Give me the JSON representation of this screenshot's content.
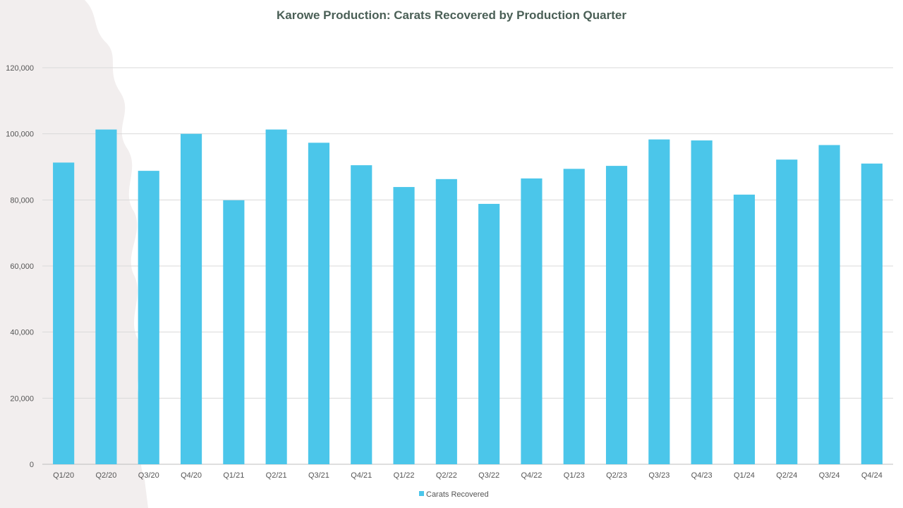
{
  "chart_data": {
    "type": "bar",
    "title": "Karowe Production: Carats Recovered by Production Quarter",
    "xlabel": "",
    "ylabel": "",
    "ylim": [
      0,
      120000
    ],
    "yticks": [
      0,
      20000,
      40000,
      60000,
      80000,
      100000,
      120000
    ],
    "ytick_labels": [
      "0",
      "20,000",
      "40,000",
      "60,000",
      "80,000",
      "100,000",
      "120,000"
    ],
    "grid": true,
    "legend_position": "bottom",
    "categories": [
      "Q1/20",
      "Q2/20",
      "Q3/20",
      "Q4/20",
      "Q1/21",
      "Q2/21",
      "Q3/21",
      "Q4/21",
      "Q1/22",
      "Q2/22",
      "Q3/22",
      "Q4/22",
      "Q1/23",
      "Q2/23",
      "Q3/23",
      "Q4/23",
      "Q1/24",
      "Q2/24",
      "Q3/24",
      "Q4/24"
    ],
    "series": [
      {
        "name": "Carats Recovered",
        "color": "#4bc6ea",
        "values": [
          91300,
          101300,
          88800,
          100000,
          79900,
          101300,
          97300,
          90500,
          83900,
          86300,
          78800,
          86500,
          89400,
          90300,
          98300,
          98000,
          81600,
          92200,
          96600,
          91000
        ]
      }
    ]
  },
  "colors": {
    "title": "#4a5f56",
    "tick_label": "#555555",
    "gridline": "#d9d9d9",
    "axis": "#bfbfbf",
    "watermark": "#f2eeee"
  }
}
